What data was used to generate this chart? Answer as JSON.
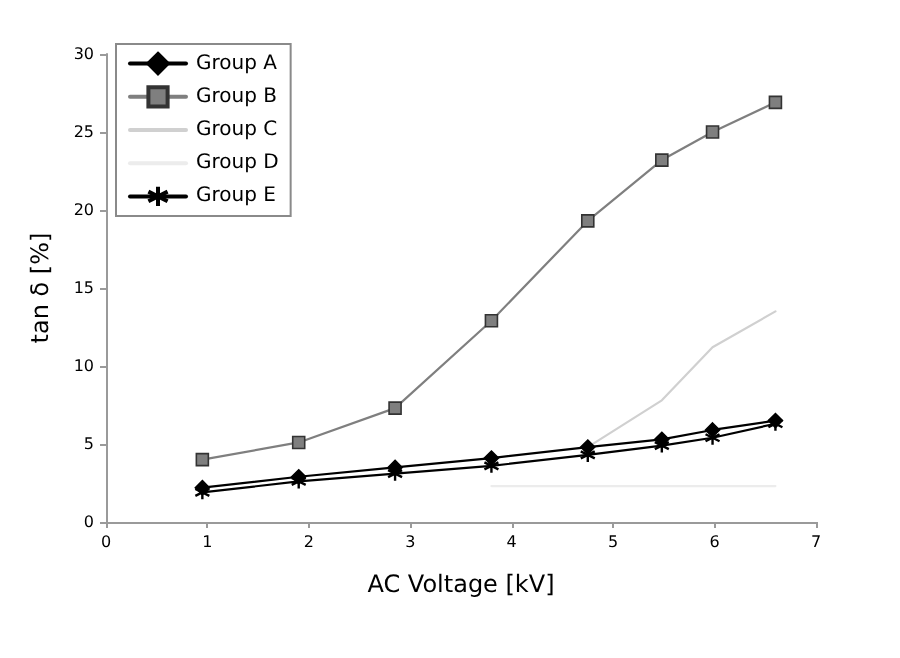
{
  "chart_data": {
    "type": "line",
    "xlabel": "AC Voltage [kV]",
    "ylabel": "tan δ [%]",
    "x": [
      0.95,
      1.9,
      2.85,
      3.8,
      4.75,
      5.48,
      5.98,
      6.6
    ],
    "series": [
      {
        "name": "Group A",
        "color": "#000000",
        "marker": "diamond",
        "values": [
          2.2,
          2.9,
          3.5,
          4.1,
          4.8,
          5.3,
          5.9,
          6.5
        ]
      },
      {
        "name": "Group B",
        "color": "#7f7f7f",
        "marker": "square",
        "values": [
          4.0,
          5.1,
          7.3,
          12.9,
          19.3,
          23.2,
          25.0,
          26.9
        ]
      },
      {
        "name": "Group C",
        "color": "#d0d0d0",
        "marker": "none",
        "values": [
          null,
          null,
          null,
          null,
          4.8,
          7.8,
          11.2,
          13.5
        ]
      },
      {
        "name": "Group D",
        "color": "#ececec",
        "marker": "none",
        "values": [
          null,
          null,
          null,
          2.3,
          2.3,
          2.3,
          2.3,
          2.3
        ]
      },
      {
        "name": "Group E",
        "color": "#000000",
        "marker": "cross",
        "values": [
          1.9,
          2.6,
          3.1,
          3.6,
          4.3,
          4.9,
          5.4,
          6.3
        ]
      }
    ],
    "xlim": [
      0,
      7
    ],
    "xticks": [
      0,
      1,
      2,
      3,
      4,
      5,
      6,
      7
    ],
    "ylim": [
      0,
      30
    ],
    "yticks": [
      0,
      5,
      10,
      15,
      20,
      25,
      30
    ],
    "legend": "top left"
  }
}
